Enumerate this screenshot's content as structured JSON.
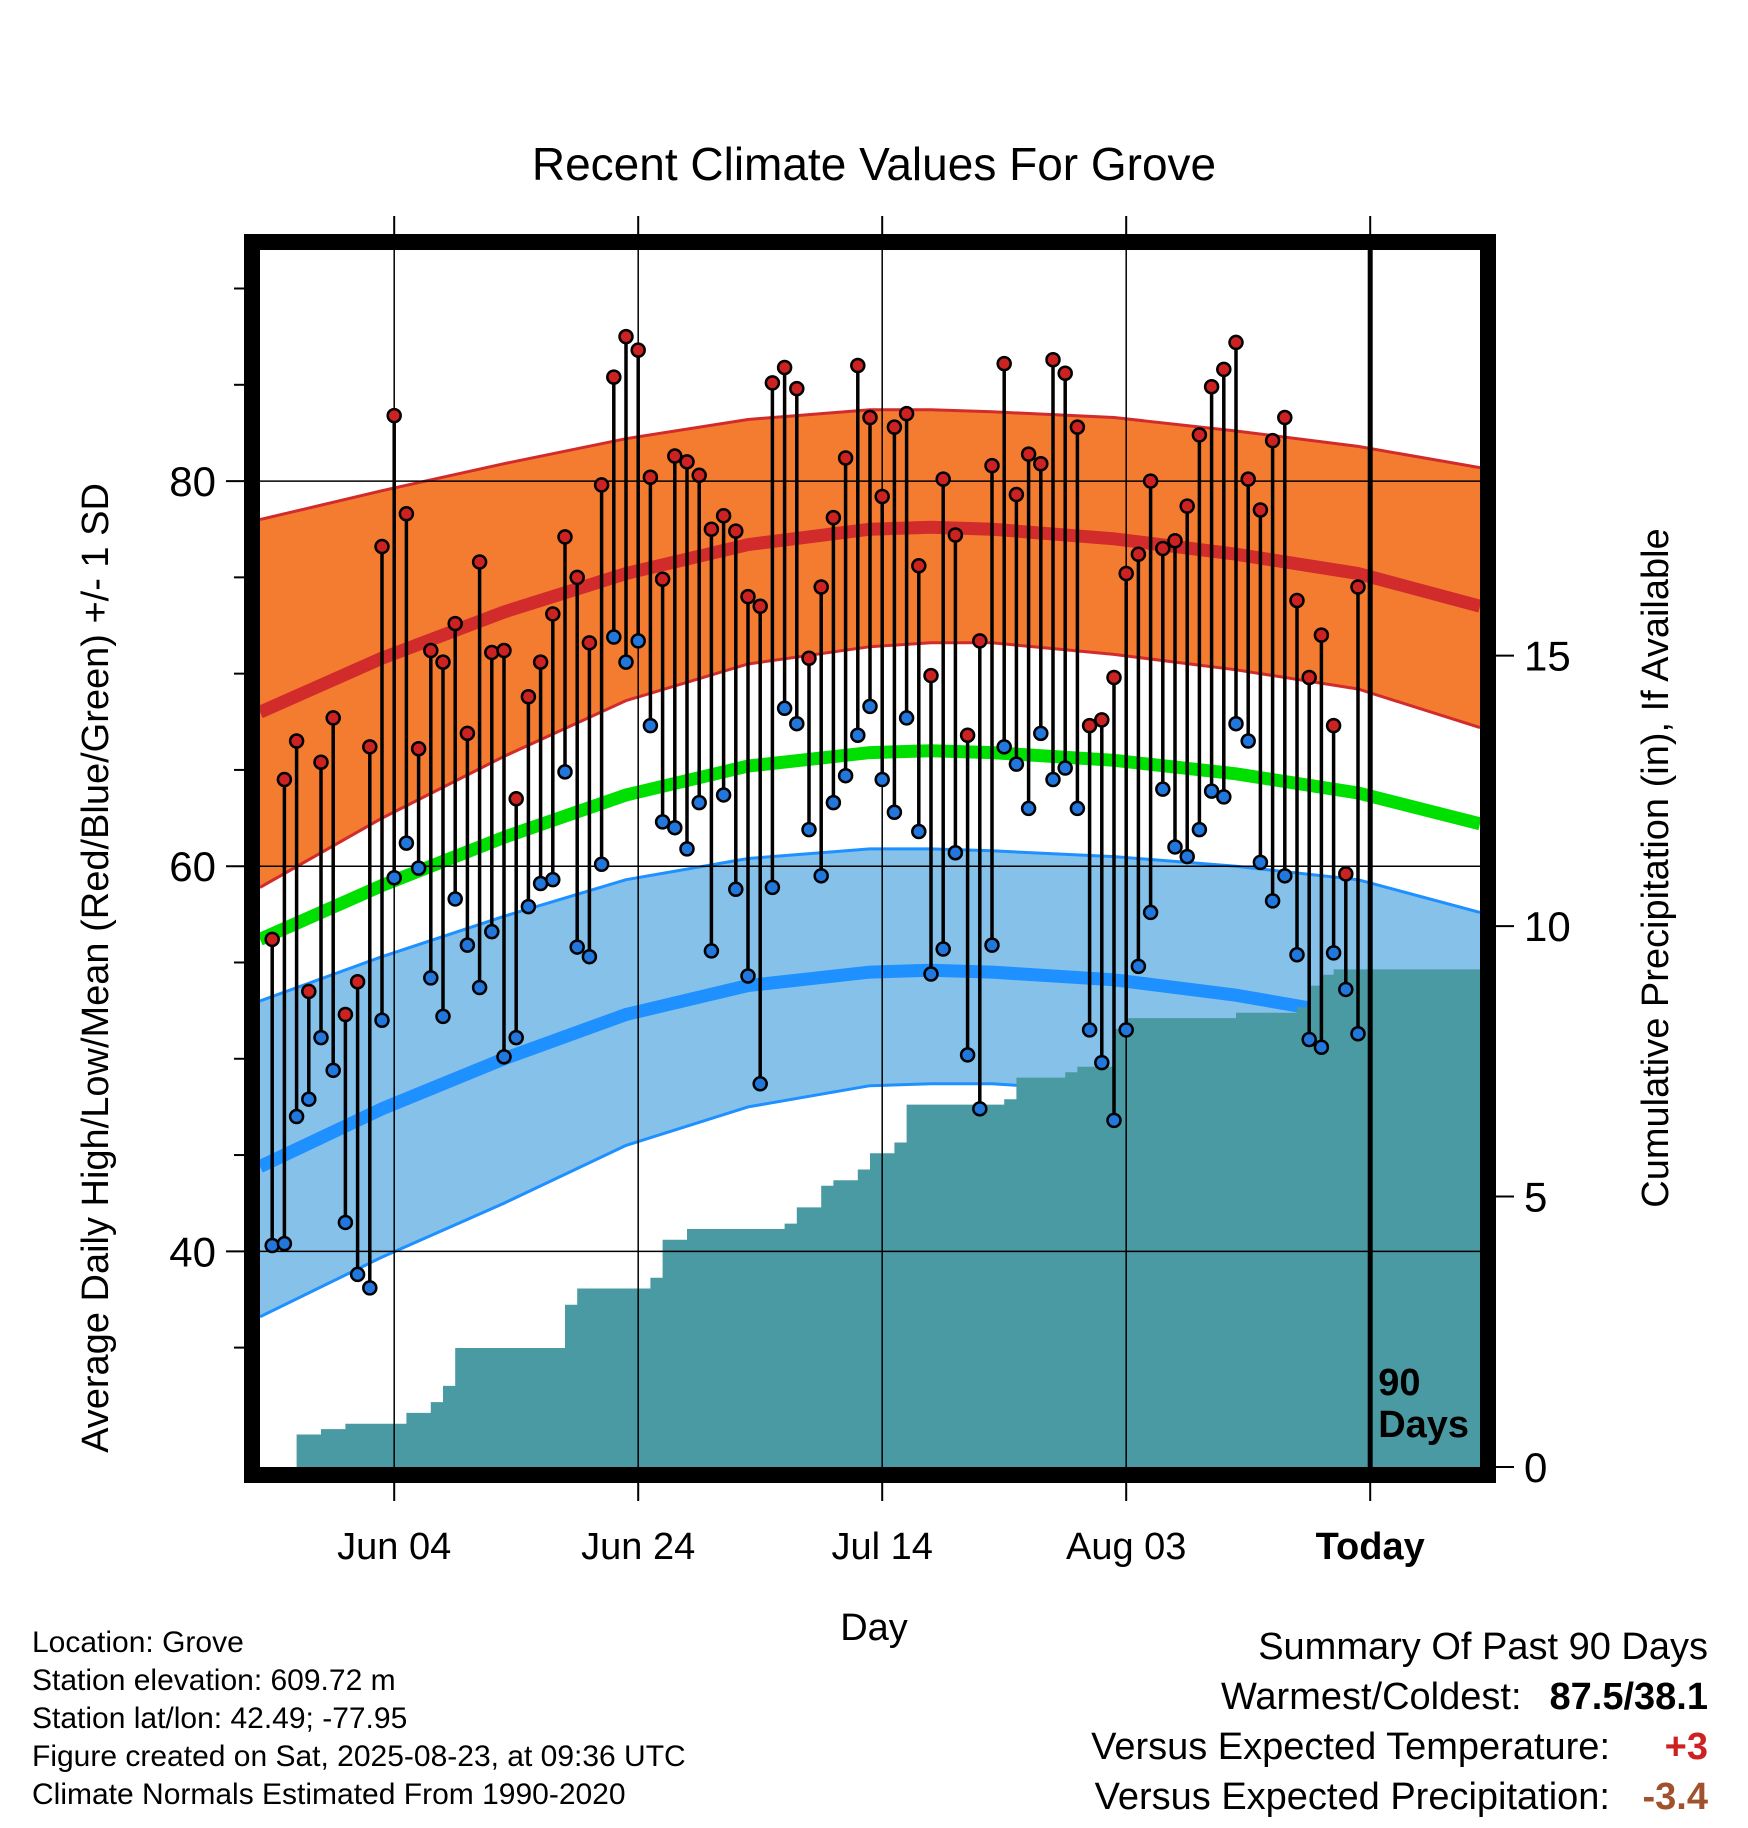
{
  "chart_data": {
    "type": "line",
    "title": "Recent Climate Values For Grove",
    "xlabel": "Day",
    "ylabel": "Average Daily High/Low/Mean (Red/Blue/Green) +/- 1 SD",
    "y2label": "Cumulative Precipitation (in), If Available",
    "x_ticks": [
      "Jun 04",
      "Jun 24",
      "Jul 14",
      "Aug 03",
      "Today"
    ],
    "x_tick_days": [
      11,
      31,
      51,
      71,
      91
    ],
    "xlim": [
      0,
      100
    ],
    "ylim": [
      28.8,
      92
    ],
    "y_ticks": [
      40,
      60,
      80
    ],
    "y2lim": [
      0,
      22.5
    ],
    "y2_ticks": [
      0,
      5,
      10,
      15
    ],
    "today_day": 91,
    "today_label": "90\nDays",
    "normals": {
      "day": [
        0,
        10,
        20,
        30,
        40,
        50,
        55,
        60,
        70,
        80,
        90,
        100
      ],
      "high_mean": [
        68.0,
        70.8,
        73.2,
        75.2,
        76.7,
        77.5,
        77.6,
        77.5,
        77.0,
        76.2,
        75.2,
        73.5
      ],
      "high_upper": [
        78.0,
        79.5,
        80.9,
        82.2,
        83.2,
        83.7,
        83.7,
        83.6,
        83.3,
        82.6,
        81.8,
        80.7
      ],
      "high_lower": [
        58.9,
        62.5,
        65.7,
        68.6,
        70.5,
        71.4,
        71.6,
        71.6,
        71.0,
        70.2,
        69.2,
        67.2
      ],
      "mean": [
        56.2,
        59.0,
        61.5,
        63.7,
        65.2,
        65.9,
        66.0,
        65.9,
        65.5,
        64.8,
        63.8,
        62.2
      ],
      "low_mean": [
        44.4,
        47.4,
        50.0,
        52.3,
        53.8,
        54.5,
        54.6,
        54.5,
        54.1,
        53.3,
        52.2,
        50.6
      ],
      "low_upper": [
        53.0,
        55.3,
        57.4,
        59.3,
        60.4,
        60.9,
        60.9,
        60.8,
        60.5,
        60.0,
        59.3,
        57.6
      ],
      "low_lower": [
        36.6,
        39.7,
        42.5,
        45.5,
        47.5,
        48.6,
        48.7,
        48.7,
        48.3,
        47.0,
        45.3,
        44.3
      ]
    },
    "series": [
      {
        "name": "High",
        "color": "#cc2222",
        "values": [
          56.2,
          64.5,
          66.5,
          53.5,
          65.4,
          67.7,
          52.3,
          54.0,
          66.2,
          76.6,
          83.4,
          78.3,
          66.1,
          71.2,
          70.6,
          72.6,
          66.9,
          75.8,
          71.1,
          71.2,
          63.5,
          68.8,
          70.6,
          73.1,
          77.1,
          75.0,
          71.6,
          79.8,
          85.4,
          87.5,
          86.8,
          80.2,
          74.9,
          81.3,
          81.0,
          80.3,
          77.5,
          78.2,
          77.4,
          74.0,
          73.5,
          85.1,
          85.9,
          84.8,
          70.8,
          74.5,
          78.1,
          81.2,
          86.0,
          83.3,
          79.2,
          82.8,
          83.5,
          75.6,
          69.9,
          80.1,
          77.2,
          66.8,
          71.7,
          80.8,
          86.1,
          79.3,
          81.4,
          80.9,
          86.3,
          85.6,
          82.8,
          67.3,
          67.6,
          69.8,
          75.2,
          76.2,
          80.0,
          76.5,
          76.9,
          78.7,
          82.4,
          84.9,
          85.8,
          87.2,
          80.1,
          78.5,
          82.1,
          83.3,
          73.8,
          69.8,
          72.0,
          67.3,
          59.6,
          74.5
        ]
      },
      {
        "name": "Low",
        "color": "#2277dd",
        "values": [
          40.3,
          40.4,
          47.0,
          47.9,
          51.1,
          49.4,
          41.5,
          38.8,
          38.1,
          52.0,
          59.4,
          61.2,
          59.9,
          54.2,
          52.2,
          58.3,
          55.9,
          53.7,
          56.6,
          50.1,
          51.1,
          57.9,
          59.1,
          59.3,
          64.9,
          55.8,
          55.3,
          60.1,
          71.9,
          70.6,
          71.7,
          67.3,
          62.3,
          62.0,
          60.9,
          63.3,
          55.6,
          63.7,
          58.8,
          54.3,
          48.7,
          58.9,
          68.2,
          67.4,
          61.9,
          59.5,
          63.3,
          64.7,
          66.8,
          68.3,
          64.5,
          62.8,
          67.7,
          61.8,
          54.4,
          55.7,
          60.7,
          50.2,
          47.4,
          55.9,
          66.2,
          65.3,
          63.0,
          66.9,
          64.5,
          65.1,
          63.0,
          51.5,
          49.8,
          46.8,
          51.5,
          54.8,
          57.6,
          64.0,
          61.0,
          60.5,
          61.9,
          63.9,
          63.6,
          67.4,
          66.5,
          60.2,
          58.2,
          59.5,
          55.4,
          51.0,
          50.6,
          55.5,
          53.6,
          51.3
        ]
      },
      {
        "name": "Precipitation",
        "color": "#4a9aa3",
        "x": [
          3,
          5,
          7,
          10,
          11,
          12,
          14,
          15,
          16,
          24,
          25,
          26,
          30,
          31,
          32,
          33,
          34,
          35,
          36,
          43,
          44,
          46,
          47,
          49,
          50,
          52,
          53,
          61,
          62,
          66,
          67,
          70,
          71,
          80,
          84,
          85,
          86,
          87,
          88,
          91,
          95,
          99
        ],
        "values": [
          0.6,
          0.7,
          0.8,
          0.8,
          0.8,
          1.0,
          1.2,
          1.5,
          2.2,
          2.2,
          3.0,
          3.3,
          3.3,
          3.3,
          3.5,
          4.2,
          4.2,
          4.4,
          4.4,
          4.5,
          4.8,
          5.2,
          5.3,
          5.5,
          5.8,
          6.0,
          6.7,
          6.8,
          7.2,
          7.3,
          7.4,
          8.1,
          8.3,
          8.4,
          8.4,
          8.5,
          8.9,
          9.1,
          9.2,
          9.2,
          9.2,
          9.2
        ]
      }
    ],
    "grid": true
  },
  "footer": {
    "location": "Location: Grove",
    "elevation": "Station elevation: 609.72 m",
    "latlon": "Station lat/lon: 42.49; -77.95",
    "created": "Figure created on Sat, 2025-08-23, at 09:36 UTC",
    "normals": "Climate Normals Estimated From 1990-2020"
  },
  "summary": {
    "heading": "Summary Of Past 90 Days",
    "warm_label": "Warmest/Coldest:",
    "warm_value": "87.5/38.1",
    "temp_label": "Versus Expected Temperature:",
    "temp_value": "+3",
    "temp_color": "#cc2222",
    "precip_label": "Versus Expected Precipitation:",
    "precip_value": "-3.4",
    "precip_color": "#a0522d"
  }
}
